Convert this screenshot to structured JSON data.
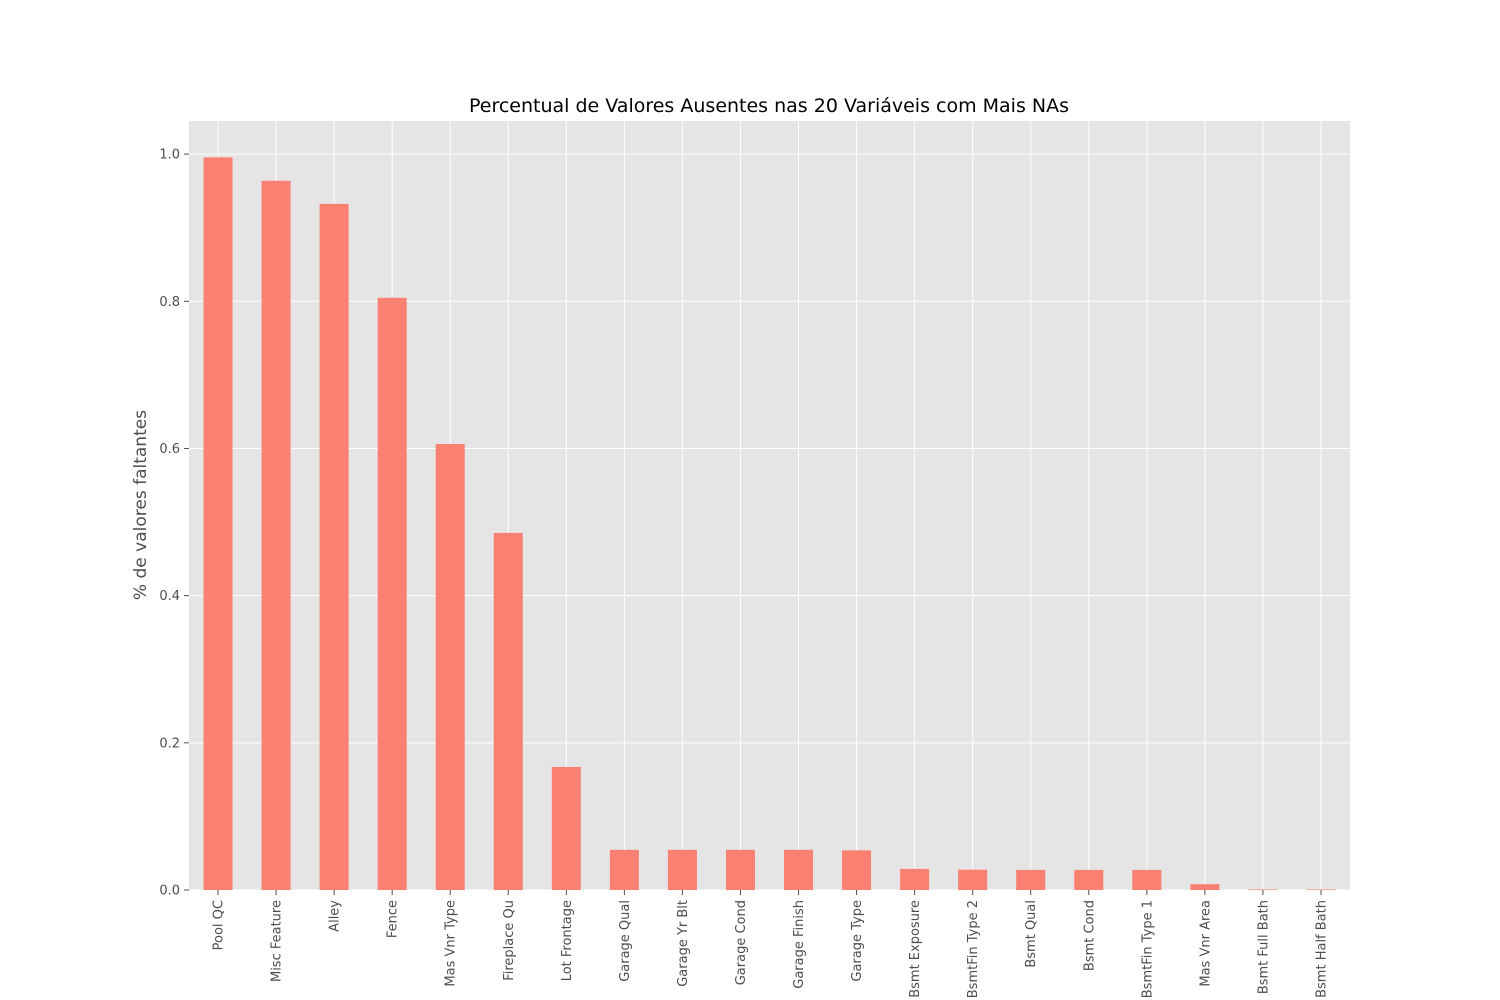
{
  "chart_data": {
    "type": "bar",
    "title": "Percentual de Valores Ausentes nas 20 Variáveis com Mais NAs",
    "xlabel": "",
    "ylabel": "% de valores faltantes",
    "ylim": [
      0,
      1.045
    ],
    "yticks": [
      0.0,
      0.2,
      0.4,
      0.6,
      0.8,
      1.0
    ],
    "ytick_labels": [
      "0.0",
      "0.2",
      "0.4",
      "0.6",
      "0.8",
      "1.0"
    ],
    "grid": true,
    "bar_color": "#fa8072",
    "plot_background": "#e5e5e5",
    "grid_color": "#ffffff",
    "categories": [
      "Pool QC",
      "Misc Feature",
      "Alley",
      "Fence",
      "Mas Vnr Type",
      "Fireplace Qu",
      "Lot Frontage",
      "Garage Qual",
      "Garage Yr Blt",
      "Garage Cond",
      "Garage Finish",
      "Garage Type",
      "Bsmt Exposure",
      "BsmtFin Type 2",
      "Bsmt Qual",
      "Bsmt Cond",
      "BsmtFin Type 1",
      "Mas Vnr Area",
      "Bsmt Full Bath",
      "Bsmt Half Bath"
    ],
    "values": [
      0.9956,
      0.9638,
      0.9324,
      0.8048,
      0.6061,
      0.4853,
      0.1672,
      0.0546,
      0.0546,
      0.0546,
      0.0546,
      0.0539,
      0.0287,
      0.0276,
      0.0273,
      0.0273,
      0.0273,
      0.0079,
      0.0007,
      0.0007
    ]
  }
}
